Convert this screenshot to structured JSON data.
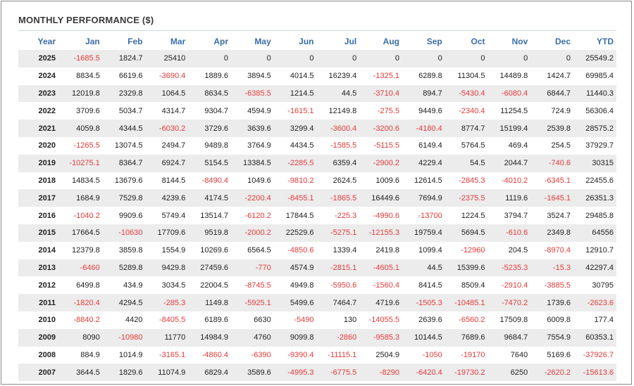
{
  "title": "MONTHLY PERFORMANCE ($)",
  "colors": {
    "negative": "#e53a3a",
    "header": "#3b6da8",
    "stripe": "#ececec"
  },
  "headers": [
    "Year",
    "Jan",
    "Feb",
    "Mar",
    "Apr",
    "May",
    "Jun",
    "Jul",
    "Aug",
    "Sep",
    "Oct",
    "Nov",
    "Dec",
    "YTD"
  ],
  "rows": [
    {
      "year": "2025",
      "values": [
        "-1685.5",
        "1824.7",
        "25410",
        "0",
        "0",
        "0",
        "0",
        "0",
        "0",
        "0",
        "0",
        "0",
        "25549.2"
      ]
    },
    {
      "year": "2024",
      "values": [
        "8834.5",
        "6619.6",
        "-3690.4",
        "1889.6",
        "3894.5",
        "4014.5",
        "16239.4",
        "-1325.1",
        "6289.8",
        "11304.5",
        "14489.8",
        "1424.7",
        "69985.4"
      ]
    },
    {
      "year": "2023",
      "values": [
        "12019.8",
        "2329.8",
        "1064.5",
        "8634.5",
        "-6385.5",
        "1214.5",
        "44.5",
        "-3710.4",
        "894.7",
        "-5430.4",
        "-6080.4",
        "6844.7",
        "11440.3"
      ]
    },
    {
      "year": "2022",
      "values": [
        "3709.6",
        "5034.7",
        "4314.7",
        "9304.7",
        "4594.9",
        "-1615.1",
        "12149.8",
        "-275.5",
        "9449.6",
        "-2340.4",
        "11254.5",
        "724.9",
        "56306.4"
      ]
    },
    {
      "year": "2021",
      "values": [
        "4059.8",
        "4344.5",
        "-6030.2",
        "3729.6",
        "3639.6",
        "3299.4",
        "-3600.4",
        "-3200.6",
        "-4180.4",
        "8774.7",
        "15199.4",
        "2539.8",
        "28575.2"
      ]
    },
    {
      "year": "2020",
      "values": [
        "-1265.5",
        "13074.5",
        "2494.7",
        "9489.8",
        "3764.9",
        "4434.5",
        "-1585.5",
        "-5115.5",
        "6149.4",
        "5764.5",
        "469.4",
        "254.5",
        "37929.7"
      ]
    },
    {
      "year": "2019",
      "values": [
        "-10275.1",
        "8364.7",
        "6924.7",
        "5154.5",
        "13384.5",
        "-2285.5",
        "6359.4",
        "-2900.2",
        "4229.4",
        "54.5",
        "2044.7",
        "-740.6",
        "30315"
      ]
    },
    {
      "year": "2018",
      "values": [
        "14834.5",
        "13679.6",
        "8144.5",
        "-8490.4",
        "1049.6",
        "-9810.2",
        "2624.5",
        "1009.6",
        "12614.5",
        "-2845.3",
        "-4010.2",
        "-6345.1",
        "22455.6"
      ]
    },
    {
      "year": "2017",
      "values": [
        "1684.9",
        "7529.8",
        "4239.6",
        "4174.5",
        "-2200.4",
        "-8455.1",
        "-1865.5",
        "16449.6",
        "7694.9",
        "-2375.5",
        "1119.6",
        "-1645.1",
        "26351.3"
      ]
    },
    {
      "year": "2016",
      "values": [
        "-1040.2",
        "9909.6",
        "5749.4",
        "13514.7",
        "-6120.2",
        "17844.5",
        "-225.3",
        "-4990.6",
        "-13700",
        "1224.5",
        "3794.7",
        "3524.7",
        "29485.8"
      ]
    },
    {
      "year": "2015",
      "values": [
        "17664.5",
        "-10630",
        "17709.6",
        "9519.8",
        "-2000.2",
        "22529.6",
        "-5275.1",
        "-12155.3",
        "19759.4",
        "5694.5",
        "-610.6",
        "2349.8",
        "64556"
      ]
    },
    {
      "year": "2014",
      "values": [
        "12379.8",
        "3859.8",
        "1554.9",
        "10269.6",
        "6564.5",
        "-4850.6",
        "1339.4",
        "2419.8",
        "1099.4",
        "-12960",
        "204.5",
        "-8970.4",
        "12910.7"
      ]
    },
    {
      "year": "2013",
      "values": [
        "-6460",
        "5289.8",
        "9429.8",
        "27459.6",
        "-770",
        "4574.9",
        "-2815.1",
        "-4605.1",
        "44.5",
        "15399.6",
        "-5235.3",
        "-15.3",
        "42297.4"
      ]
    },
    {
      "year": "2012",
      "values": [
        "6499.8",
        "434.9",
        "3034.5",
        "22004.5",
        "-8745.5",
        "4949.8",
        "-5950.6",
        "-1560.4",
        "8414.5",
        "8509.4",
        "-2910.4",
        "-3885.5",
        "30795"
      ]
    },
    {
      "year": "2011",
      "values": [
        "-1820.4",
        "4294.5",
        "-285.3",
        "1149.8",
        "-5925.1",
        "5499.6",
        "7464.7",
        "4719.6",
        "-1505.3",
        "-10485.1",
        "-7470.2",
        "1739.6",
        "-2623.6"
      ]
    },
    {
      "year": "2010",
      "values": [
        "-8840.2",
        "4420",
        "-8405.5",
        "6189.6",
        "6630",
        "-5490",
        "130",
        "-14055.5",
        "2639.6",
        "-6560.2",
        "17509.8",
        "6009.8",
        "177.4"
      ]
    },
    {
      "year": "2009",
      "values": [
        "8090",
        "-10980",
        "11770",
        "14984.9",
        "4760",
        "9099.8",
        "-2860",
        "-9585.3",
        "10144.5",
        "7689.6",
        "9684.7",
        "7554.9",
        "60353.1"
      ]
    },
    {
      "year": "2008",
      "values": [
        "884.9",
        "1014.9",
        "-3165.1",
        "-4860.4",
        "-6390",
        "-9390.4",
        "-11115.1",
        "2504.9",
        "-1050",
        "-19170",
        "7640",
        "5169.6",
        "-37926.7"
      ]
    },
    {
      "year": "2007",
      "values": [
        "3644.5",
        "1829.6",
        "11074.9",
        "6829.4",
        "3589.6",
        "-4995.3",
        "-6775.5",
        "-8290",
        "-6420.4",
        "-19730.2",
        "6250",
        "-2620.2",
        "-15613.6"
      ]
    }
  ]
}
